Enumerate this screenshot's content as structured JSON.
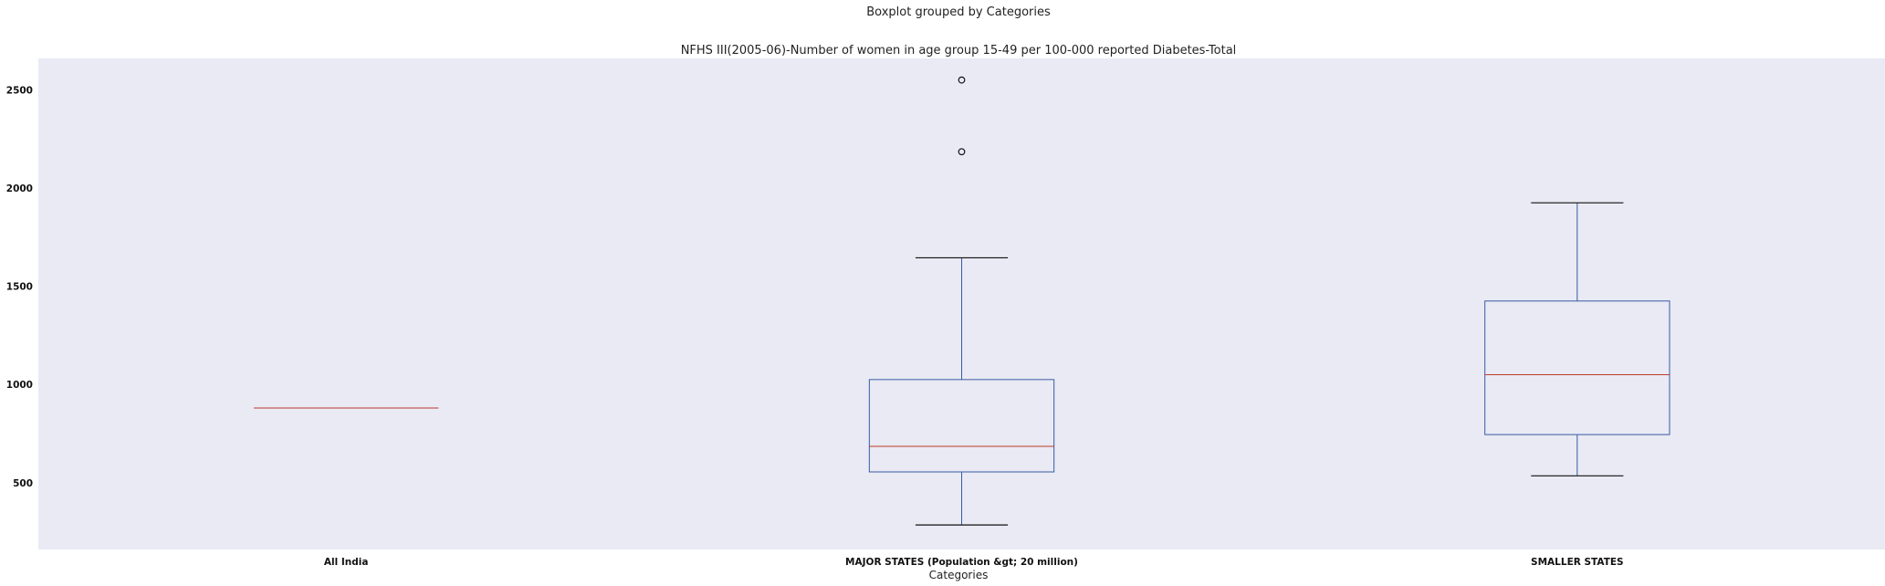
{
  "chart_data": {
    "type": "boxplot",
    "suptitle": "Boxplot grouped by Categories",
    "title": "NFHS III(2005-06)-Number of women in age group 15-49 per 100-000 reported Diabetes-Total",
    "xlabel": "Categories",
    "ylabel": "",
    "ylim": [
      160,
      2660
    ],
    "yticks": [
      500,
      1000,
      1500,
      2000,
      2500
    ],
    "grid": false,
    "colors": {
      "background": "#e9eaf3",
      "box": "#3a5aa6",
      "median": "#c0392b",
      "whisker_cap": "#111111",
      "flier": "#111111"
    },
    "categories": [
      "All India",
      "MAJOR STATES (Population &gt; 20 million)",
      "SMALLER STATES"
    ],
    "boxes": [
      {
        "category": "All India",
        "whislo": 880,
        "q1": 880,
        "med": 880,
        "q3": 880,
        "whishi": 880,
        "fliers": []
      },
      {
        "category": "MAJOR STATES (Population &gt; 20 million)",
        "whislo": 285,
        "q1": 555,
        "med": 685,
        "q3": 1025,
        "whishi": 1645,
        "fliers": [
          2185,
          2550
        ]
      },
      {
        "category": "SMALLER STATES",
        "whislo": 535,
        "q1": 745,
        "med": 1050,
        "q3": 1425,
        "whishi": 1925,
        "fliers": []
      }
    ]
  }
}
